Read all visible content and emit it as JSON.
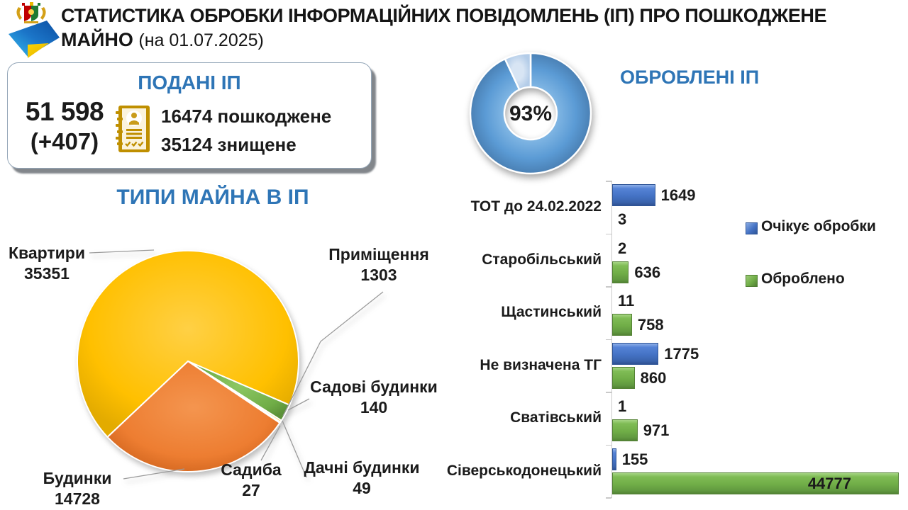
{
  "header": {
    "logo": "luhansk-emblem-with-flag-swoosh",
    "title_line1": "СТАТИСТИКА ОБРОБКИ ІНФОРМАЦІЙНИХ ПОВІДОМЛЕНЬ (ІП) ПРО ПОШКОДЖЕНЕ",
    "title_line2_bold": "МАЙНО",
    "title_date": "(на 01.07.2025)"
  },
  "submitted_card": {
    "title": "ПОДАНІ ІП",
    "total": "51 598",
    "delta": "(+407)",
    "icon": "document-person-icon",
    "items": [
      {
        "value": "16474",
        "label": "пошкоджене"
      },
      {
        "value": "35124",
        "label": "знищене"
      }
    ]
  },
  "processed": {
    "title": "ОБРОБЛЕНІ ІП",
    "percent_label": "93%"
  },
  "chart_data": [
    {
      "type": "pie",
      "subtype": "donut",
      "title": "ОБРОБЛЕНІ ІП",
      "center_label": "93%",
      "values": [
        93,
        7
      ],
      "colors": [
        "#5B9BD5",
        "#BDD7EE"
      ],
      "legend_position": "none"
    },
    {
      "type": "pie",
      "title": "ТИПИ МАЙНА В ІП",
      "start_angle_deg": 226.7,
      "slices": [
        {
          "label": "Квартири",
          "value": 35351,
          "color": "#FFC000"
        },
        {
          "label": "Приміщення",
          "value": 1303,
          "color": "#70AD47"
        },
        {
          "label": "Садові будинки",
          "value": 140,
          "color": "#FFD34D"
        },
        {
          "label": "Дачні будинки",
          "value": 49,
          "color": "#843C0C"
        },
        {
          "label": "Садиба",
          "value": 27,
          "color": "#264478"
        },
        {
          "label": "Будинки",
          "value": 14728,
          "color": "#ED7D31"
        }
      ]
    },
    {
      "type": "bar",
      "orientation": "horizontal",
      "categories": [
        "ТОТ до 24.02.2022",
        "Старобільський",
        "Щастинський",
        "Не визначена ТГ",
        "Сватівський",
        "Сіверськодонецький"
      ],
      "series": [
        {
          "name": "Очікує обробки",
          "color": "#4472C4",
          "values": [
            1649,
            2,
            11,
            1775,
            1,
            155
          ]
        },
        {
          "name": "Оброблено",
          "color": "#70AD47",
          "values": [
            3,
            636,
            758,
            860,
            971,
            44777
          ]
        }
      ],
      "legend_position": "right",
      "grid": false
    }
  ]
}
